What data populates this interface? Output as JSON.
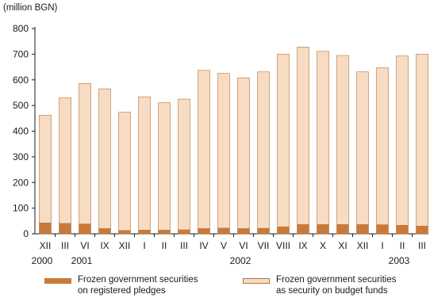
{
  "chart_data": {
    "type": "bar",
    "stacked": true,
    "unit_label": "(million BGN)",
    "categories": [
      "XII",
      "III",
      "VI",
      "IX",
      "XII",
      "I",
      "II",
      "III",
      "IV",
      "V",
      "VI",
      "VII",
      "VIII",
      "IX",
      "X",
      "XI",
      "XII",
      "I",
      "II",
      "III"
    ],
    "year_labels": [
      {
        "label": "2000",
        "category_index": 0
      },
      {
        "label": "2001",
        "category_index": 2
      },
      {
        "label": "2002",
        "category_index": 10
      },
      {
        "label": "2003",
        "category_index": 18
      }
    ],
    "series": [
      {
        "name_lines": [
          "Frozen government securities",
          "on registered pledges"
        ],
        "color": "#c97a3a",
        "values": [
          42,
          40,
          38,
          20,
          13,
          14,
          14,
          15,
          20,
          22,
          20,
          21,
          27,
          36,
          36,
          36,
          36,
          35,
          33,
          30
        ]
      },
      {
        "name_lines": [
          "Frozen government securities",
          "as security on budget funds"
        ],
        "color": "#f7dcc3",
        "values": [
          420,
          490,
          548,
          545,
          461,
          520,
          497,
          510,
          617,
          603,
          588,
          610,
          673,
          692,
          675,
          659,
          595,
          612,
          660,
          670
        ]
      }
    ],
    "ylim": [
      0,
      800
    ],
    "yticks": [
      "0",
      "100",
      "200",
      "300",
      "400",
      "500",
      "600",
      "700",
      "800"
    ],
    "bar_edge_color": "#b5743c",
    "axis_color": "#1a1a1a"
  }
}
